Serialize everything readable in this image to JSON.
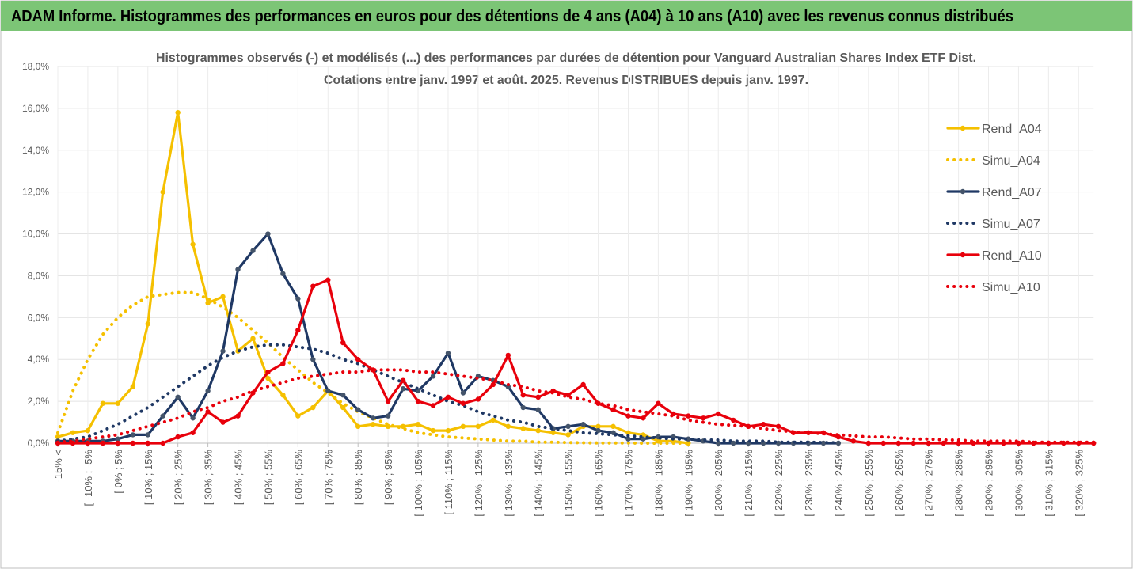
{
  "header": {
    "title": "ADAM Informe. Histogrammes des performances en euros pour des détentions de 4 ans (A04) à 10 ans (A10) avec les revenus connus distribués"
  },
  "chart_data": {
    "type": "line",
    "title": "Histogrammes observés (-) et modélisés (...) des performances par durées de détention pour Vanguard Australian Shares Index ETF Dist.",
    "subtitle": "Cotations entre janv. 1997 et août. 2025. Revenus DISTRIBUES depuis janv. 1997.",
    "categories": [
      "-15% <",
      null,
      "[ -10% ; -5%",
      null,
      "[ 0% ; 5%",
      null,
      "[ 10% ; 15%",
      null,
      "[ 20% ; 25%",
      null,
      "[ 30% ; 35%",
      null,
      "[ 40% ; 45%",
      null,
      "[ 50% ; 55%",
      null,
      "[ 60% ; 65%",
      null,
      "[ 70% ; 75%",
      null,
      "[ 80% ; 85%",
      null,
      "[ 90% ; 95%",
      null,
      "[ 100% ; 105%",
      null,
      "[ 110% ; 115%",
      null,
      "[ 120% ; 125%",
      null,
      "[ 130% ; 135%",
      null,
      "[ 140% ; 145%",
      null,
      "[ 150% ; 155%",
      null,
      "[ 160% ; 165%",
      null,
      "[ 170% ; 175%",
      null,
      "[ 180% ; 185%",
      null,
      "[ 190% ; 195%",
      null,
      "[ 200% ; 205%",
      null,
      "[ 210% ; 215%",
      null,
      "[ 220% ; 225%",
      null,
      "[ 230% ; 235%",
      null,
      "[ 240% ; 245%",
      null,
      "[ 250% ; 255%",
      null,
      "[ 260% ; 265%",
      null,
      "[ 270% ; 275%",
      null,
      "[ 280% ; 285%",
      null,
      "[ 290% ; 295%",
      null,
      "[ 300% ; 305%",
      null,
      "[ 310% ; 315%",
      null,
      "[ 320% ; 325%",
      null
    ],
    "ylim": [
      0,
      18
    ],
    "yticks": [
      {
        "value": 0,
        "label": "0,0%"
      },
      {
        "value": 2,
        "label": "2,0%"
      },
      {
        "value": 4,
        "label": "4,0%"
      },
      {
        "value": 6,
        "label": "6,0%"
      },
      {
        "value": 8,
        "label": "8,0%"
      },
      {
        "value": 10,
        "label": "10,0%"
      },
      {
        "value": 12,
        "label": "12,0%"
      },
      {
        "value": 14,
        "label": "14,0%"
      },
      {
        "value": 16,
        "label": "16,0%"
      },
      {
        "value": 18,
        "label": "18,0%"
      }
    ],
    "grid": true,
    "legend": "right",
    "series": [
      {
        "name": "Rend_A04",
        "color": "#f5c000",
        "style": "solid",
        "marker": true,
        "values": [
          0.3,
          0.5,
          0.6,
          1.9,
          1.9,
          2.7,
          5.7,
          12.0,
          15.8,
          9.5,
          6.7,
          7.0,
          4.4,
          5.0,
          3.1,
          2.3,
          1.3,
          1.7,
          2.5,
          1.7,
          0.8,
          0.9,
          0.8,
          0.8,
          0.9,
          0.6,
          0.6,
          0.8,
          0.8,
          1.1,
          0.8,
          0.7,
          0.6,
          0.5,
          0.4,
          0.8,
          0.8,
          0.8,
          0.5,
          0.4,
          0.1,
          0.1,
          0.0,
          null,
          null,
          null,
          null,
          null,
          null,
          null,
          null,
          null,
          null,
          null,
          null,
          null,
          null,
          null,
          null,
          null,
          null,
          null,
          null,
          null,
          null,
          null,
          null,
          null,
          null,
          null
        ]
      },
      {
        "name": "Simu_A04",
        "color": "#f5c000",
        "style": "dotted",
        "marker": false,
        "values": [
          0.5,
          2.5,
          4.0,
          5.2,
          6.0,
          6.6,
          7.0,
          7.1,
          7.2,
          7.2,
          6.9,
          6.5,
          6.0,
          5.4,
          4.8,
          4.1,
          3.5,
          2.9,
          2.4,
          1.9,
          1.5,
          1.2,
          0.9,
          0.7,
          0.5,
          0.4,
          0.3,
          0.25,
          0.2,
          0.15,
          0.1,
          0.1,
          0.05,
          0.05,
          0.03,
          0.02,
          0.01,
          0.01,
          0.01,
          0.0,
          0.0,
          0.0,
          0.0,
          null,
          null,
          null,
          null,
          null,
          null,
          null,
          null,
          null,
          null,
          null,
          null,
          null,
          null,
          null,
          null,
          null,
          null,
          null,
          null,
          null,
          null,
          null,
          null,
          null,
          null,
          null
        ]
      },
      {
        "name": "Rend_A07",
        "color": "#1f3864",
        "style": "solid",
        "marker": true,
        "values": [
          0.1,
          0.1,
          0.1,
          0.1,
          0.2,
          0.4,
          0.4,
          1.3,
          2.2,
          1.2,
          2.5,
          4.4,
          8.3,
          9.2,
          10.0,
          8.1,
          6.9,
          4.0,
          2.5,
          2.3,
          1.6,
          1.2,
          1.3,
          2.6,
          2.5,
          3.2,
          4.3,
          2.4,
          3.2,
          3.0,
          2.7,
          1.7,
          1.6,
          0.7,
          0.8,
          0.9,
          0.6,
          0.5,
          0.2,
          0.2,
          0.3,
          0.3,
          0.2,
          0.1,
          0.0,
          0.0,
          0.0,
          0.0,
          0.0,
          0.0,
          0.0,
          0.0,
          0.0,
          null,
          null,
          null,
          null,
          null,
          null,
          null,
          null,
          null,
          null,
          null,
          null,
          null,
          null,
          null,
          null,
          null
        ]
      },
      {
        "name": "Simu_A07",
        "color": "#1f3864",
        "style": "dotted",
        "marker": false,
        "values": [
          0.1,
          0.2,
          0.3,
          0.6,
          0.9,
          1.3,
          1.7,
          2.2,
          2.7,
          3.2,
          3.7,
          4.1,
          4.4,
          4.6,
          4.7,
          4.7,
          4.6,
          4.5,
          4.3,
          4.0,
          3.8,
          3.5,
          3.2,
          2.9,
          2.6,
          2.3,
          2.0,
          1.8,
          1.5,
          1.3,
          1.1,
          1.0,
          0.8,
          0.7,
          0.6,
          0.5,
          0.45,
          0.4,
          0.35,
          0.3,
          0.25,
          0.2,
          0.2,
          0.15,
          0.15,
          0.1,
          0.1,
          0.1,
          0.05,
          0.05,
          0.05,
          0.03,
          0.02,
          null,
          null,
          null,
          null,
          null,
          null,
          null,
          null,
          null,
          null,
          null,
          null,
          null,
          null,
          null,
          null,
          null
        ]
      },
      {
        "name": "Rend_A10",
        "color": "#e8000b",
        "style": "solid",
        "marker": true,
        "values": [
          0.0,
          0.0,
          0.0,
          0.0,
          0.0,
          0.0,
          0.0,
          0.0,
          0.3,
          0.5,
          1.5,
          1.0,
          1.3,
          2.4,
          3.4,
          3.8,
          5.4,
          7.5,
          7.8,
          4.8,
          4.0,
          3.5,
          2.0,
          3.0,
          2.0,
          1.8,
          2.2,
          1.9,
          2.1,
          2.8,
          4.2,
          2.3,
          2.2,
          2.5,
          2.3,
          2.8,
          1.9,
          1.6,
          1.3,
          1.2,
          1.9,
          1.4,
          1.3,
          1.2,
          1.4,
          1.1,
          0.8,
          0.9,
          0.8,
          0.5,
          0.5,
          0.5,
          0.3,
          0.1,
          0.0,
          0.0,
          0.0,
          0.0,
          0.0,
          0.0,
          0.0,
          0.0,
          0.0,
          0.0,
          0.0,
          0.0,
          0.0,
          0.0,
          0.0,
          0.0
        ]
      },
      {
        "name": "Simu_A10",
        "color": "#e8000b",
        "style": "dotted",
        "marker": false,
        "values": [
          0.05,
          0.1,
          0.2,
          0.3,
          0.4,
          0.6,
          0.8,
          1.0,
          1.2,
          1.5,
          1.7,
          2.0,
          2.2,
          2.5,
          2.7,
          2.9,
          3.1,
          3.2,
          3.3,
          3.4,
          3.4,
          3.5,
          3.5,
          3.5,
          3.4,
          3.4,
          3.3,
          3.2,
          3.1,
          3.0,
          2.8,
          2.7,
          2.5,
          2.4,
          2.2,
          2.1,
          1.9,
          1.8,
          1.6,
          1.5,
          1.4,
          1.3,
          1.1,
          1.0,
          0.9,
          0.85,
          0.8,
          0.7,
          0.6,
          0.55,
          0.5,
          0.45,
          0.4,
          0.35,
          0.3,
          0.3,
          0.25,
          0.2,
          0.2,
          0.15,
          0.15,
          0.1,
          0.1,
          0.1,
          0.1,
          0.05,
          0.05,
          0.05,
          0.05,
          0.05
        ]
      }
    ]
  }
}
